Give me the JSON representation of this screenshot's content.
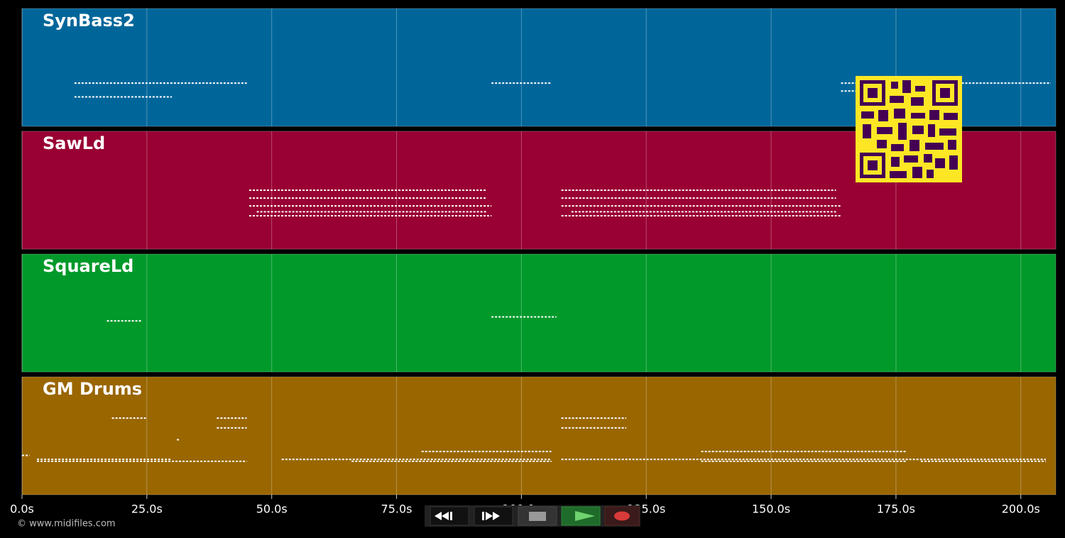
{
  "chart_data": {
    "type": "pianoroll",
    "xlim": [
      0,
      207
    ],
    "xticks": [
      {
        "value": 0,
        "label": "0.0s"
      },
      {
        "value": 25,
        "label": "25.0s"
      },
      {
        "value": 50,
        "label": "50.0s"
      },
      {
        "value": 75,
        "label": "75.0s"
      },
      {
        "value": 100,
        "label": "100.0s"
      },
      {
        "value": 125,
        "label": "125.0s"
      },
      {
        "value": 150,
        "label": "150.0s"
      },
      {
        "value": 175,
        "label": "175.0s"
      },
      {
        "value": 200,
        "label": "200.0s"
      }
    ],
    "grid": true,
    "tracks": [
      {
        "name": "SynBass2",
        "color": "#00669a",
        "ylim": [
          20,
          80
        ],
        "notes": [
          {
            "t0": 10.5,
            "t1": 45,
            "pitch": 42
          },
          {
            "t0": 10.5,
            "t1": 30,
            "pitch": 35
          },
          {
            "t0": 94,
            "t1": 106,
            "pitch": 42
          },
          {
            "t0": 164,
            "t1": 206,
            "pitch": 42
          },
          {
            "t0": 164,
            "t1": 168,
            "pitch": 38
          }
        ]
      },
      {
        "name": "SawLd",
        "color": "#990033",
        "ylim": [
          20,
          80
        ],
        "notes": [
          {
            "t0": 45.5,
            "t1": 93,
            "pitch": 50
          },
          {
            "t0": 45.5,
            "t1": 93,
            "pitch": 46
          },
          {
            "t0": 45.5,
            "t1": 94,
            "pitch": 42
          },
          {
            "t0": 47,
            "t1": 93,
            "pitch": 39
          },
          {
            "t0": 45.5,
            "t1": 94,
            "pitch": 37
          },
          {
            "t0": 108,
            "t1": 163,
            "pitch": 50
          },
          {
            "t0": 108,
            "t1": 163,
            "pitch": 46
          },
          {
            "t0": 108,
            "t1": 164,
            "pitch": 42
          },
          {
            "t0": 110,
            "t1": 163,
            "pitch": 39
          },
          {
            "t0": 108,
            "t1": 164,
            "pitch": 37
          }
        ]
      },
      {
        "name": "SquareLd",
        "color": "#00992a",
        "ylim": [
          20,
          80
        ],
        "notes": [
          {
            "t0": 17,
            "t1": 24,
            "pitch": 46
          },
          {
            "t0": 94,
            "t1": 107,
            "pitch": 48
          }
        ]
      },
      {
        "name": "GM Drums",
        "color": "#996600",
        "ylim": [
          20,
          80
        ],
        "notes": [
          {
            "t0": 18,
            "t1": 25,
            "pitch": 59
          },
          {
            "t0": 39,
            "t1": 45,
            "pitch": 59
          },
          {
            "t0": 108,
            "t1": 121,
            "pitch": 59
          },
          {
            "t0": 39,
            "t1": 45,
            "pitch": 54
          },
          {
            "t0": 108,
            "t1": 121,
            "pitch": 54
          },
          {
            "t0": 31,
            "t1": 31.5,
            "pitch": 48
          },
          {
            "t0": 80,
            "t1": 106,
            "pitch": 42
          },
          {
            "t0": 136,
            "t1": 177,
            "pitch": 42
          },
          {
            "t0": 0,
            "t1": 1.5,
            "pitch": 40
          },
          {
            "t0": 3,
            "t1": 30,
            "pitch": 38
          },
          {
            "t0": 52,
            "t1": 106,
            "pitch": 38
          },
          {
            "t0": 108,
            "t1": 205,
            "pitch": 38
          },
          {
            "t0": 3,
            "t1": 45,
            "pitch": 37
          },
          {
            "t0": 66,
            "t1": 106,
            "pitch": 37
          },
          {
            "t0": 136,
            "t1": 177,
            "pitch": 37
          },
          {
            "t0": 180,
            "t1": 205,
            "pitch": 37
          }
        ]
      }
    ]
  },
  "footer": {
    "copyright": "© www.midifiles.com"
  }
}
